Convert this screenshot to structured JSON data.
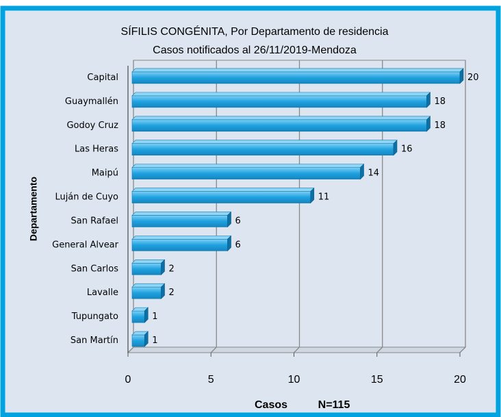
{
  "chart_data": {
    "type": "bar",
    "orientation": "horizontal",
    "title": "SÍFILIS CONGÉNITA, Por Departamento de residencia",
    "subtitle": "Casos notificados al 26/11/2019-Mendoza",
    "x_label": "Casos",
    "annotation": "N=115",
    "y_label": "Departamento",
    "categories": [
      "Capital",
      "Guaymallén",
      "Godoy Cruz",
      "Las Heras",
      "Maipú",
      "Luján de Cuyo",
      "San Rafael",
      "General Alvear",
      "San Carlos",
      "Lavalle",
      "Tupungato",
      "San Martín"
    ],
    "values": [
      20,
      18,
      18,
      16,
      14,
      11,
      6,
      6,
      2,
      2,
      1,
      1
    ],
    "color": "#1fa2e0",
    "xlim": [
      0,
      20
    ],
    "xticks": [
      0,
      5,
      10,
      15,
      20
    ],
    "grid": true
  }
}
